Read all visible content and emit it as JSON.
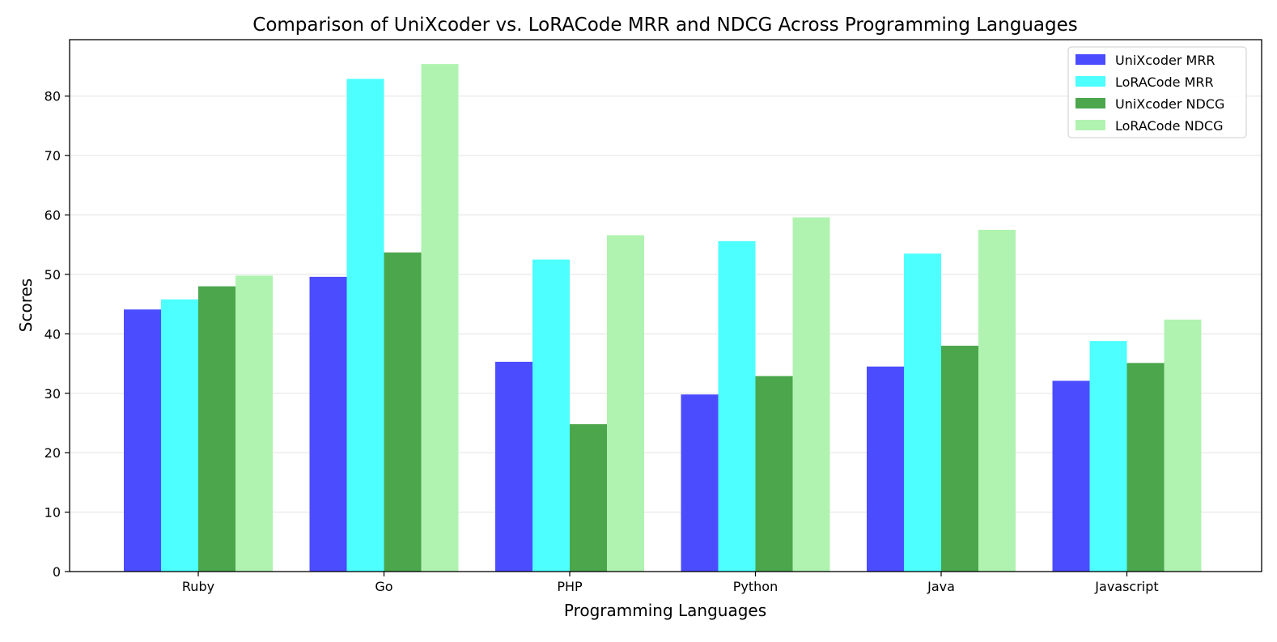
{
  "chart_data": {
    "type": "bar",
    "title": "Comparison of UniXcoder vs. LoRACode MRR and NDCG Across Programming Languages",
    "xlabel": "Programming Languages",
    "ylabel": "Scores",
    "categories": [
      "Ruby",
      "Go",
      "PHP",
      "Python",
      "Java",
      "Javascript"
    ],
    "ylim": [
      0,
      89.5
    ],
    "yticks": [
      0,
      10,
      20,
      30,
      40,
      50,
      60,
      70,
      80
    ],
    "grid": "horizontal",
    "legend_position": "top-right",
    "series": [
      {
        "name": "UniXcoder MRR",
        "color": "#4c4cff",
        "values": [
          44.1,
          49.6,
          35.3,
          29.8,
          34.5,
          32.1
        ]
      },
      {
        "name": "LoRACode MRR",
        "color": "#4dffff",
        "values": [
          45.8,
          82.9,
          52.5,
          55.6,
          53.5,
          38.8
        ]
      },
      {
        "name": "UniXcoder NDCG",
        "color": "#4ca64c",
        "values": [
          48.0,
          53.7,
          24.8,
          32.9,
          38.0,
          35.1
        ]
      },
      {
        "name": "LoRACode NDCG",
        "color": "#b0f3b0",
        "values": [
          49.8,
          85.4,
          56.6,
          59.6,
          57.5,
          42.4
        ]
      }
    ]
  }
}
